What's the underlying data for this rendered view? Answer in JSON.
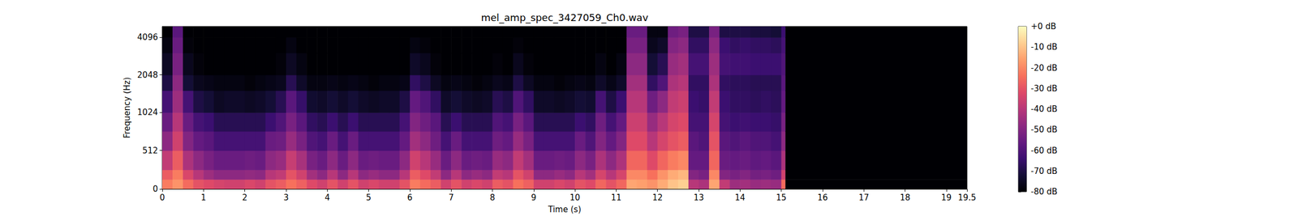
{
  "chart_data": {
    "type": "heatmap",
    "title": "mel_amp_spec_3427059_Ch0.wav",
    "x_label": "Time (s)",
    "y_label": "Frequency (Hz)",
    "xlim": [
      0,
      19.5
    ],
    "xticks": [
      0,
      1,
      2,
      3,
      4,
      5,
      6,
      7,
      8,
      9,
      10,
      11,
      12,
      13,
      14,
      15,
      16,
      17,
      18,
      19
    ],
    "ylim": [
      0,
      5000
    ],
    "yticks": [
      0,
      512,
      1024,
      2048,
      4096
    ],
    "time_edges": [
      0,
      0.25,
      0.5,
      0.75,
      1,
      1.25,
      1.5,
      1.75,
      2,
      2.25,
      2.5,
      2.75,
      3,
      3.25,
      3.5,
      3.75,
      4,
      4.25,
      4.5,
      4.75,
      5,
      5.25,
      5.5,
      5.75,
      6,
      6.25,
      6.5,
      6.75,
      7,
      7.25,
      7.5,
      7.75,
      8,
      8.25,
      8.5,
      8.75,
      9,
      9.25,
      9.5,
      9.75,
      10,
      10.25,
      10.5,
      10.75,
      11,
      11.25,
      11.5,
      11.75,
      12,
      12.25,
      12.5,
      12.75,
      13,
      13.25,
      13.5,
      13.75,
      14,
      14.25,
      14.5,
      14.75,
      15,
      15.1,
      19.5
    ],
    "freq_edges": [
      0,
      128,
      256,
      512,
      768,
      1024,
      1536,
      2048,
      3072,
      4096,
      5000
    ],
    "db": [
      [
        -22,
        -28,
        -38,
        -48,
        -55,
        -62,
        -70,
        -75,
        -78,
        -80
      ],
      [
        -18,
        -22,
        -28,
        -35,
        -40,
        -45,
        -48,
        -52,
        -55,
        -58
      ],
      [
        -25,
        -33,
        -42,
        -50,
        -55,
        -62,
        -72,
        -76,
        -79,
        -80
      ],
      [
        -30,
        -40,
        -48,
        -56,
        -62,
        -70,
        -76,
        -79,
        -80,
        -80
      ],
      [
        -32,
        -45,
        -52,
        -58,
        -64,
        -72,
        -77,
        -80,
        -80,
        -80
      ],
      [
        -34,
        -48,
        -55,
        -62,
        -68,
        -75,
        -78,
        -80,
        -80,
        -80
      ],
      [
        -35,
        -48,
        -55,
        -62,
        -68,
        -74,
        -78,
        -80,
        -80,
        -80
      ],
      [
        -35,
        -48,
        -55,
        -62,
        -68,
        -74,
        -78,
        -80,
        -80,
        -80
      ],
      [
        -33,
        -47,
        -54,
        -62,
        -68,
        -75,
        -79,
        -80,
        -80,
        -80
      ],
      [
        -35,
        -48,
        -55,
        -62,
        -68,
        -74,
        -78,
        -80,
        -80,
        -80
      ],
      [
        -30,
        -40,
        -48,
        -55,
        -64,
        -72,
        -77,
        -80,
        -80,
        -80
      ],
      [
        -28,
        -38,
        -46,
        -54,
        -60,
        -68,
        -76,
        -79,
        -80,
        -80
      ],
      [
        -24,
        -30,
        -37,
        -46,
        -52,
        -58,
        -68,
        -75,
        -78,
        -80
      ],
      [
        -27,
        -35,
        -43,
        -52,
        -58,
        -65,
        -74,
        -78,
        -80,
        -80
      ],
      [
        -32,
        -44,
        -52,
        -60,
        -66,
        -73,
        -78,
        -80,
        -80,
        -80
      ],
      [
        -35,
        -48,
        -55,
        -62,
        -68,
        -74,
        -78,
        -80,
        -80,
        -80
      ],
      [
        -30,
        -40,
        -48,
        -55,
        -64,
        -72,
        -77,
        -80,
        -80,
        -80
      ],
      [
        -35,
        -48,
        -55,
        -62,
        -68,
        -74,
        -78,
        -80,
        -80,
        -80
      ],
      [
        -30,
        -40,
        -48,
        -55,
        -64,
        -72,
        -77,
        -80,
        -80,
        -80
      ],
      [
        -35,
        -48,
        -55,
        -62,
        -68,
        -74,
        -78,
        -80,
        -80,
        -80
      ],
      [
        -33,
        -46,
        -54,
        -62,
        -68,
        -75,
        -79,
        -80,
        -80,
        -80
      ],
      [
        -35,
        -48,
        -55,
        -62,
        -68,
        -74,
        -78,
        -80,
        -80,
        -80
      ],
      [
        -35,
        -48,
        -55,
        -62,
        -68,
        -74,
        -78,
        -80,
        -80,
        -80
      ],
      [
        -30,
        -40,
        -48,
        -56,
        -62,
        -70,
        -77,
        -80,
        -80,
        -80
      ],
      [
        -22,
        -28,
        -35,
        -44,
        -50,
        -56,
        -66,
        -74,
        -78,
        -80
      ],
      [
        -25,
        -32,
        -40,
        -48,
        -54,
        -60,
        -70,
        -76,
        -79,
        -80
      ],
      [
        -28,
        -38,
        -46,
        -54,
        -58,
        -66,
        -75,
        -79,
        -80,
        -80
      ],
      [
        -35,
        -48,
        -55,
        -62,
        -68,
        -74,
        -78,
        -80,
        -80,
        -80
      ],
      [
        -30,
        -40,
        -48,
        -55,
        -64,
        -72,
        -77,
        -80,
        -80,
        -80
      ],
      [
        -35,
        -48,
        -55,
        -62,
        -68,
        -74,
        -78,
        -80,
        -80,
        -80
      ],
      [
        -33,
        -46,
        -54,
        -62,
        -68,
        -75,
        -79,
        -80,
        -80,
        -80
      ],
      [
        -35,
        -48,
        -55,
        -62,
        -68,
        -74,
        -78,
        -80,
        -80,
        -80
      ],
      [
        -28,
        -38,
        -46,
        -54,
        -60,
        -68,
        -76,
        -79,
        -80,
        -80
      ],
      [
        -30,
        -40,
        -48,
        -56,
        -62,
        -70,
        -77,
        -80,
        -80,
        -80
      ],
      [
        -24,
        -30,
        -38,
        -46,
        -52,
        -60,
        -70,
        -76,
        -79,
        -80
      ],
      [
        -27,
        -35,
        -44,
        -52,
        -58,
        -66,
        -75,
        -79,
        -80,
        -80
      ],
      [
        -35,
        -48,
        -55,
        -62,
        -68,
        -74,
        -78,
        -80,
        -80,
        -80
      ],
      [
        -35,
        -48,
        -55,
        -62,
        -68,
        -74,
        -78,
        -80,
        -80,
        -80
      ],
      [
        -33,
        -46,
        -54,
        -62,
        -68,
        -75,
        -79,
        -80,
        -80,
        -80
      ],
      [
        -35,
        -48,
        -55,
        -62,
        -68,
        -74,
        -78,
        -80,
        -80,
        -80
      ],
      [
        -30,
        -40,
        -48,
        -55,
        -64,
        -72,
        -77,
        -80,
        -80,
        -80
      ],
      [
        -32,
        -44,
        -52,
        -60,
        -66,
        -73,
        -78,
        -80,
        -80,
        -80
      ],
      [
        -26,
        -34,
        -42,
        -50,
        -54,
        -62,
        -74,
        -78,
        -80,
        -80
      ],
      [
        -30,
        -40,
        -48,
        -56,
        -62,
        -70,
        -77,
        -80,
        -80,
        -80
      ],
      [
        -26,
        -34,
        -42,
        -50,
        -56,
        -64,
        -74,
        -78,
        -80,
        -80
      ],
      [
        -15,
        -20,
        -26,
        -32,
        -36,
        -40,
        -44,
        -48,
        -52,
        -55
      ],
      [
        -16,
        -20,
        -26,
        -32,
        -36,
        -40,
        -44,
        -48,
        -52,
        -55
      ],
      [
        -18,
        -24,
        -32,
        -40,
        -46,
        -54,
        -66,
        -72,
        -76,
        -78
      ],
      [
        -14,
        -18,
        -26,
        -34,
        -40,
        -48,
        -60,
        -68,
        -74,
        -78
      ],
      [
        -10,
        -14,
        -22,
        -30,
        -34,
        -38,
        -42,
        -46,
        -50,
        -54
      ],
      [
        -8,
        -12,
        -20,
        -28,
        -32,
        -36,
        -40,
        -44,
        -48,
        -52
      ],
      [
        -40,
        -50,
        -56,
        -58,
        -62,
        -64,
        -66,
        -62,
        -66,
        -70
      ],
      [
        -42,
        -52,
        -56,
        -60,
        -62,
        -65,
        -66,
        -62,
        -66,
        -70
      ],
      [
        -15,
        -20,
        -26,
        -30,
        -34,
        -38,
        -42,
        -45,
        -48,
        -52
      ],
      [
        -38,
        -50,
        -55,
        -58,
        -62,
        -64,
        -66,
        -62,
        -64,
        -70
      ],
      [
        -45,
        -52,
        -56,
        -60,
        -64,
        -66,
        -67,
        -63,
        -66,
        -70
      ],
      [
        -44,
        -50,
        -55,
        -58,
        -63,
        -66,
        -67,
        -63,
        -65,
        -70
      ],
      [
        -46,
        -53,
        -57,
        -60,
        -64,
        -67,
        -68,
        -64,
        -66,
        -71
      ],
      [
        -45,
        -52,
        -56,
        -60,
        -64,
        -66,
        -68,
        -64,
        -66,
        -71
      ],
      [
        -46,
        -54,
        -58,
        -62,
        -65,
        -67,
        -68,
        -64,
        -67,
        -72
      ],
      [
        -25,
        -35,
        -42,
        -48,
        -52,
        -56,
        -58,
        -60,
        -62,
        -64
      ],
      [
        -80,
        -80,
        -80,
        -80,
        -80,
        -80,
        -80,
        -80,
        -80,
        -80
      ]
    ],
    "colorbar": {
      "range": [
        -80,
        0
      ],
      "ticks": [
        {
          "value": 0,
          "label": "+0 dB"
        },
        {
          "value": -10,
          "label": "-10 dB"
        },
        {
          "value": -20,
          "label": "-20 dB"
        },
        {
          "value": -30,
          "label": "-30 dB"
        },
        {
          "value": -40,
          "label": "-40 dB"
        },
        {
          "value": -50,
          "label": "-50 dB"
        },
        {
          "value": -60,
          "label": "-60 dB"
        },
        {
          "value": -70,
          "label": "-70 dB"
        },
        {
          "value": -80,
          "label": "-80 dB"
        }
      ]
    }
  }
}
